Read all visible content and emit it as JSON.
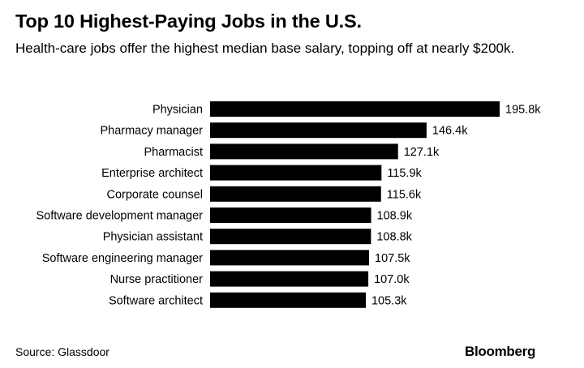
{
  "header": {
    "title": "Top 10 Highest-Paying Jobs in the U.S.",
    "subtitle": "Health-care jobs offer the highest median base salary, topping off at nearly $200k."
  },
  "footer": {
    "source": "Source: Glassdoor",
    "brand": "Bloomberg"
  },
  "colors": {
    "bar": "#000000",
    "text": "#000000",
    "background": "#ffffff"
  },
  "chart_data": {
    "type": "bar",
    "orientation": "horizontal",
    "title": "Top 10 Highest-Paying Jobs in the U.S.",
    "subtitle": "Health-care jobs offer the highest median base salary, topping off at nearly $200k.",
    "categories": [
      "Physician",
      "Pharmacy manager",
      "Pharmacist",
      "Enterprise architect",
      "Corporate counsel",
      "Software development manager",
      "Physician assistant",
      "Software engineering manager",
      "Nurse practitioner",
      "Software architect"
    ],
    "values": [
      195.8,
      146.4,
      127.1,
      115.9,
      115.6,
      108.9,
      108.8,
      107.5,
      107.0,
      105.3
    ],
    "labels": [
      "195.8k",
      "146.4k",
      "127.1k",
      "115.9k",
      "115.6k",
      "108.9k",
      "108.8k",
      "107.5k",
      "107.0k",
      "105.3k"
    ],
    "xlim": [
      0,
      195.8
    ],
    "grid": false,
    "legend": "none"
  }
}
